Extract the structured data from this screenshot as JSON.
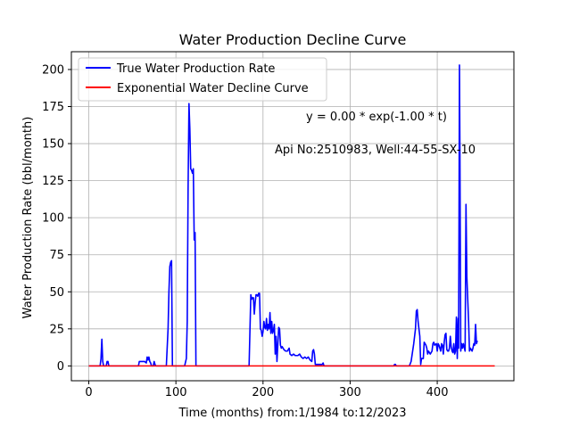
{
  "chart_data": {
    "type": "line",
    "title": "Water Production Decline Curve",
    "xlabel": "Time (months) from:1/1984 to:12/2023",
    "ylabel": "Water Production Rate (bbl/month)",
    "xlim": [
      -20,
      488
    ],
    "ylim": [
      -10,
      212
    ],
    "x_ticks": [
      0,
      100,
      200,
      300,
      400
    ],
    "y_ticks": [
      0,
      25,
      50,
      75,
      100,
      125,
      150,
      175,
      200
    ],
    "grid": true,
    "legend_position": "upper-left",
    "annotations": [
      "y = 0.00 * exp(-1.00 * t)",
      "Api No:2510983, Well:44-55-SX-10"
    ],
    "series": [
      {
        "name": "True Water Production Rate",
        "color": "#0000ff",
        "points": [
          [
            0,
            0
          ],
          [
            13,
            0
          ],
          [
            14,
            5
          ],
          [
            15,
            18
          ],
          [
            16,
            3
          ],
          [
            17,
            0
          ],
          [
            20,
            0
          ],
          [
            21,
            3
          ],
          [
            22,
            3
          ],
          [
            23,
            0
          ],
          [
            57,
            0
          ],
          [
            58,
            3
          ],
          [
            60,
            3
          ],
          [
            64,
            3
          ],
          [
            66,
            2
          ],
          [
            67,
            6
          ],
          [
            68,
            4
          ],
          [
            69,
            6
          ],
          [
            70,
            3
          ],
          [
            71,
            2
          ],
          [
            72,
            0
          ],
          [
            74,
            0
          ],
          [
            75,
            3
          ],
          [
            76,
            1
          ],
          [
            77,
            0
          ],
          [
            89,
            0
          ],
          [
            91,
            25
          ],
          [
            92,
            50
          ],
          [
            93,
            67
          ],
          [
            94,
            70
          ],
          [
            95,
            71
          ],
          [
            96,
            0
          ],
          [
            110,
            0
          ],
          [
            112,
            5
          ],
          [
            113,
            30
          ],
          [
            114,
            120
          ],
          [
            115,
            177
          ],
          [
            116,
            160
          ],
          [
            117,
            133
          ],
          [
            118,
            132
          ],
          [
            119,
            130
          ],
          [
            120,
            133
          ],
          [
            121,
            85
          ],
          [
            122,
            90
          ],
          [
            123,
            0
          ],
          [
            184,
            0
          ],
          [
            186,
            48
          ],
          [
            187,
            45
          ],
          [
            188,
            46
          ],
          [
            189,
            46
          ],
          [
            190,
            35
          ],
          [
            191,
            43
          ],
          [
            192,
            48
          ],
          [
            193,
            48
          ],
          [
            194,
            47
          ],
          [
            195,
            49
          ],
          [
            196,
            49
          ],
          [
            197,
            25
          ],
          [
            198,
            24
          ],
          [
            199,
            20
          ],
          [
            200,
            23
          ],
          [
            201,
            30
          ],
          [
            202,
            26
          ],
          [
            203,
            25
          ],
          [
            204,
            32
          ],
          [
            205,
            24
          ],
          [
            206,
            28
          ],
          [
            207,
            25
          ],
          [
            208,
            36
          ],
          [
            209,
            22
          ],
          [
            210,
            30
          ],
          [
            211,
            22
          ],
          [
            212,
            24
          ],
          [
            213,
            28
          ],
          [
            214,
            8
          ],
          [
            215,
            20
          ],
          [
            216,
            3
          ],
          [
            218,
            26
          ],
          [
            219,
            25
          ],
          [
            220,
            14
          ],
          [
            221,
            12
          ],
          [
            222,
            13
          ],
          [
            224,
            11
          ],
          [
            226,
            10
          ],
          [
            228,
            10
          ],
          [
            230,
            12
          ],
          [
            231,
            8
          ],
          [
            233,
            7
          ],
          [
            235,
            8
          ],
          [
            237,
            7
          ],
          [
            240,
            7
          ],
          [
            242,
            8
          ],
          [
            244,
            6
          ],
          [
            246,
            5
          ],
          [
            248,
            6
          ],
          [
            250,
            5
          ],
          [
            252,
            6
          ],
          [
            254,
            4
          ],
          [
            256,
            3
          ],
          [
            257,
            10
          ],
          [
            258,
            11
          ],
          [
            259,
            8
          ],
          [
            260,
            1
          ],
          [
            263,
            1
          ],
          [
            268,
            1
          ],
          [
            269,
            2
          ],
          [
            270,
            0
          ],
          [
            350,
            0
          ],
          [
            351,
            1
          ],
          [
            352,
            1
          ],
          [
            353,
            0
          ],
          [
            368,
            0
          ],
          [
            370,
            3
          ],
          [
            373,
            15
          ],
          [
            375,
            25
          ],
          [
            376,
            37
          ],
          [
            377,
            38
          ],
          [
            378,
            30
          ],
          [
            379,
            25
          ],
          [
            380,
            20
          ],
          [
            381,
            1
          ],
          [
            382,
            5
          ],
          [
            384,
            5
          ],
          [
            385,
            16
          ],
          [
            386,
            15
          ],
          [
            387,
            14
          ],
          [
            388,
            12
          ],
          [
            389,
            8
          ],
          [
            390,
            10
          ],
          [
            391,
            9
          ],
          [
            392,
            8
          ],
          [
            394,
            10
          ],
          [
            395,
            15
          ],
          [
            396,
            16
          ],
          [
            397,
            14
          ],
          [
            399,
            15
          ],
          [
            400,
            10
          ],
          [
            401,
            15
          ],
          [
            402,
            14
          ],
          [
            404,
            10
          ],
          [
            405,
            15
          ],
          [
            406,
            14
          ],
          [
            407,
            8
          ],
          [
            408,
            16
          ],
          [
            409,
            21
          ],
          [
            410,
            22
          ],
          [
            411,
            11
          ],
          [
            412,
            10
          ],
          [
            413,
            10
          ],
          [
            414,
            12
          ],
          [
            415,
            20
          ],
          [
            416,
            13
          ],
          [
            417,
            10
          ],
          [
            418,
            9
          ],
          [
            419,
            15
          ],
          [
            420,
            8
          ],
          [
            421,
            10
          ],
          [
            422,
            33
          ],
          [
            423,
            5
          ],
          [
            424,
            32
          ],
          [
            424.5,
            12
          ],
          [
            425,
            100
          ],
          [
            425.5,
            203
          ],
          [
            426,
            150
          ],
          [
            427,
            10
          ],
          [
            428,
            15
          ],
          [
            429,
            12
          ],
          [
            430,
            15
          ],
          [
            432,
            10
          ],
          [
            433,
            109
          ],
          [
            434,
            60
          ],
          [
            436,
            30
          ],
          [
            437,
            10
          ],
          [
            438,
            12
          ],
          [
            440,
            10
          ],
          [
            441,
            12
          ],
          [
            442,
            15
          ],
          [
            443,
            14
          ],
          [
            444,
            28
          ],
          [
            445,
            15
          ],
          [
            446,
            17
          ]
        ]
      },
      {
        "name": "Exponential Water Decline Curve",
        "color": "#ff0000",
        "points": [
          [
            0,
            0
          ],
          [
            466,
            0
          ]
        ]
      }
    ]
  }
}
